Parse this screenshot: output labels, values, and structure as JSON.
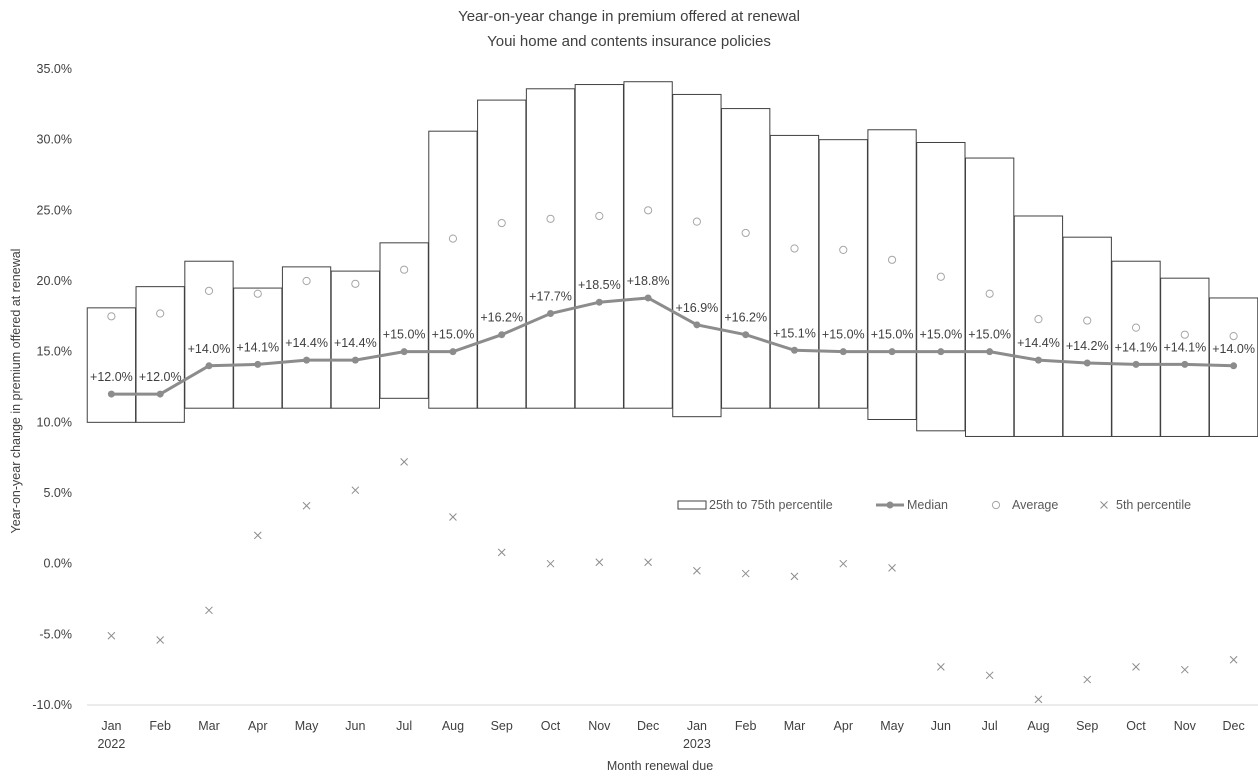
{
  "chart_data": {
    "type": "bar",
    "title": "Year-on-year change in premium offered at renewal",
    "subtitle": "Youi home and contents insurance policies",
    "xlabel": "Month renewal due",
    "ylabel": "Year-on-year change in premium offered at renewal",
    "ylim": [
      -10,
      35
    ],
    "yticks": [
      -10,
      -5,
      0,
      5,
      10,
      15,
      20,
      25,
      30,
      35
    ],
    "ytick_labels": [
      "-10.0%",
      "-5.0%",
      "0.0%",
      "5.0%",
      "10.0%",
      "15.0%",
      "20.0%",
      "25.0%",
      "30.0%",
      "35.0%"
    ],
    "categories": [
      "Jan",
      "Feb",
      "Mar",
      "Apr",
      "May",
      "Jun",
      "Jul",
      "Aug",
      "Sep",
      "Oct",
      "Nov",
      "Dec",
      "Jan",
      "Feb",
      "Mar",
      "Apr",
      "May",
      "Jun",
      "Jul",
      "Aug",
      "Sep",
      "Oct",
      "Nov",
      "Dec"
    ],
    "year_labels": [
      {
        "index": 0,
        "label": "2022"
      },
      {
        "index": 12,
        "label": "2023"
      }
    ],
    "legend_position": "right",
    "grid": false,
    "series": [
      {
        "name": "25th to 75th percentile",
        "kind": "floating-bar",
        "low": [
          10.0,
          10.0,
          11.0,
          11.0,
          11.0,
          11.0,
          11.7,
          11.0,
          11.0,
          11.0,
          11.0,
          11.0,
          10.4,
          11.0,
          11.0,
          11.0,
          10.2,
          9.4,
          9.0,
          9.0,
          9.0,
          9.0,
          9.0,
          9.0
        ],
        "high": [
          18.1,
          19.6,
          21.4,
          19.5,
          21.0,
          20.7,
          22.7,
          30.6,
          32.8,
          33.6,
          33.9,
          34.1,
          33.2,
          32.2,
          30.3,
          30.0,
          30.7,
          29.8,
          28.7,
          24.6,
          23.1,
          21.4,
          20.2,
          18.8
        ]
      },
      {
        "name": "Median",
        "kind": "line",
        "values": [
          12.0,
          12.0,
          14.0,
          14.1,
          14.4,
          14.4,
          15.0,
          15.0,
          16.2,
          17.7,
          18.5,
          18.8,
          16.9,
          16.2,
          15.1,
          15.0,
          15.0,
          15.0,
          15.0,
          14.4,
          14.2,
          14.1,
          14.1,
          14.0
        ],
        "labels": [
          "+12.0%",
          "+12.0%",
          "+14.0%",
          "+14.1%",
          "+14.4%",
          "+14.4%",
          "+15.0%",
          "+15.0%",
          "+16.2%",
          "+17.7%",
          "+18.5%",
          "+18.8%",
          "+16.9%",
          "+16.2%",
          "+15.1%",
          "+15.0%",
          "+15.0%",
          "+15.0%",
          "+15.0%",
          "+14.4%",
          "+14.2%",
          "+14.1%",
          "+14.1%",
          "+14.0%"
        ]
      },
      {
        "name": "Average",
        "kind": "scatter-circle",
        "values": [
          17.5,
          17.7,
          19.3,
          19.1,
          20.0,
          19.8,
          20.8,
          23.0,
          24.1,
          24.4,
          24.6,
          25.0,
          24.2,
          23.4,
          22.3,
          22.2,
          21.5,
          20.3,
          19.1,
          17.3,
          17.2,
          16.7,
          16.2,
          16.1
        ]
      },
      {
        "name": "5th percentile",
        "kind": "scatter-x",
        "values": [
          -5.1,
          -5.4,
          -3.3,
          2.0,
          4.1,
          5.2,
          7.2,
          3.3,
          0.8,
          0.0,
          0.1,
          0.1,
          -0.5,
          -0.7,
          -0.9,
          0.0,
          -0.3,
          -7.3,
          -7.9,
          -9.6,
          -8.2,
          -7.3,
          -7.5,
          -6.8
        ]
      }
    ],
    "colors": {
      "median_line": "#8c8c8c",
      "bar_stroke": "#404040",
      "average_marker": "#a6a6a6",
      "p5_marker": "#8c8c8c",
      "axis": "#d9d9d9",
      "text": "#404040"
    }
  }
}
